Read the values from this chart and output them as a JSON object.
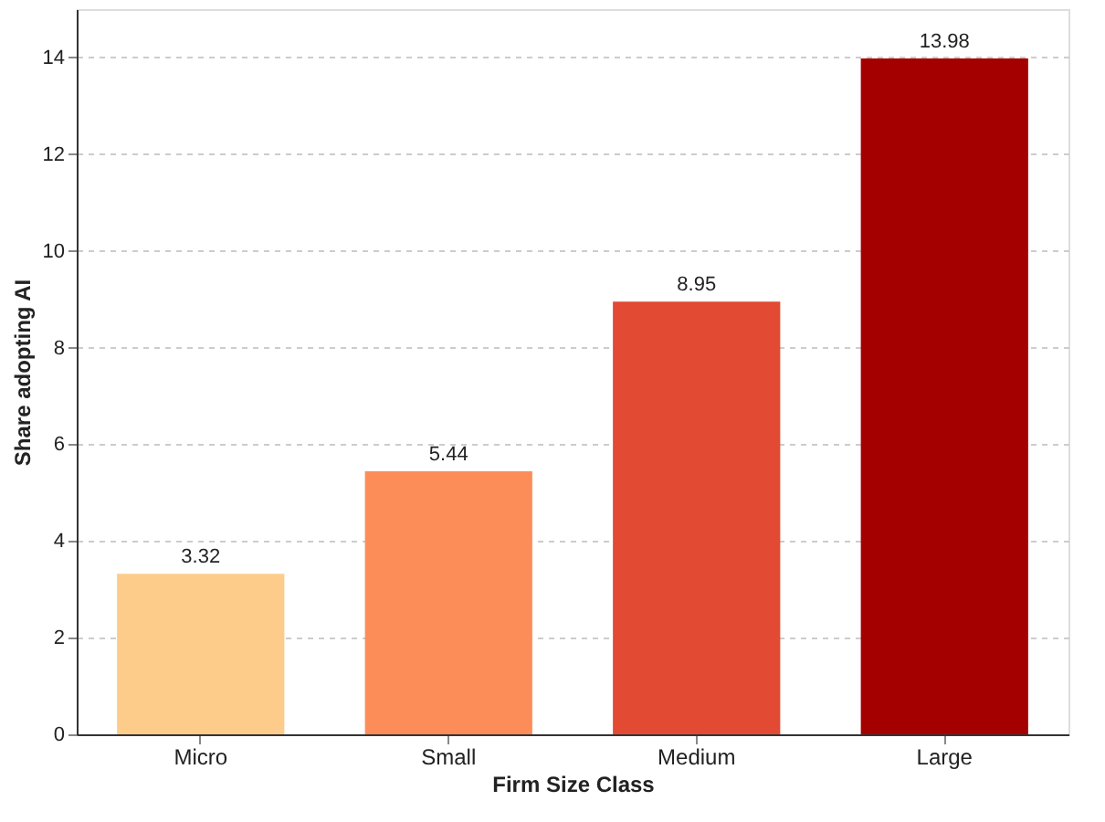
{
  "chart_data": {
    "type": "bar",
    "xlabel": "Firm Size Class",
    "ylabel": "Share adopting AI",
    "categories": [
      "Micro",
      "Small",
      "Medium",
      "Large"
    ],
    "values": [
      3.32,
      5.44,
      8.95,
      13.98
    ],
    "colors": [
      "#fdcc8a",
      "#fc8d59",
      "#e34a33",
      "#a50000"
    ],
    "ylim": [
      0,
      15
    ],
    "yticks": [
      0,
      2,
      4,
      6,
      8,
      10,
      12,
      14
    ],
    "grid": "y",
    "data_labels": true
  }
}
